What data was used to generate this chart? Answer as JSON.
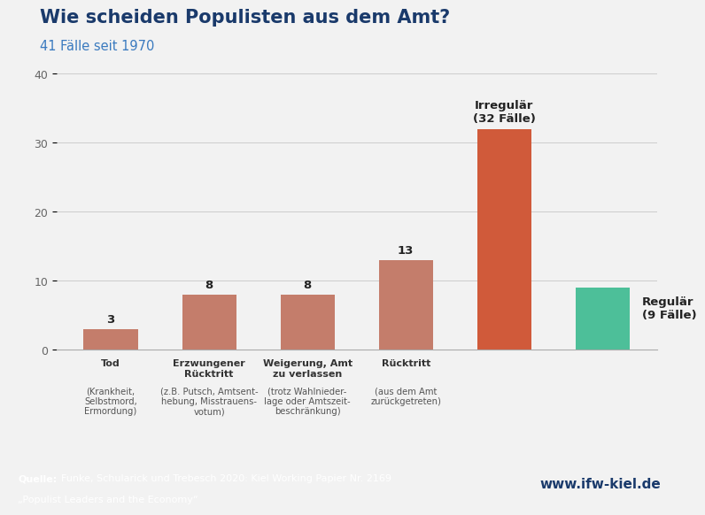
{
  "title": "Wie scheiden Populisten aus dem Amt?",
  "subtitle": "41 Fälle seit 1970",
  "title_color": "#1a3a6b",
  "subtitle_color": "#3a7abf",
  "x_labels": [
    "Tod",
    "Erzwungener\nRücktritt",
    "Weigerung, Amt\nzu verlassen",
    "Rücktritt",
    "",
    ""
  ],
  "x_sublabels": [
    "(Krankheit,\nSelbstmord,\nErmordung)",
    "(z.B. Putsch, Amtsent-\nhebung, Misstrauens-\nvotum)",
    "(trotz Wahlnieder-\nlage oder Amtszeit-\nbeschränkung)",
    "(aus dem Amt\nzurückgetreten)",
    "",
    ""
  ],
  "values": [
    3,
    8,
    8,
    13,
    32,
    9
  ],
  "bar_colors": [
    "#c47d6b",
    "#c47d6b",
    "#c47d6b",
    "#c47d6b",
    "#d05a3a",
    "#4dbf99"
  ],
  "value_labels": [
    "3",
    "8",
    "8",
    "13",
    "",
    ""
  ],
  "ylim": [
    0,
    40
  ],
  "yticks": [
    0,
    10,
    20,
    30,
    40
  ],
  "background_color": "#f2f2f2",
  "plot_bg_color": "#f2f2f2",
  "grid_color": "#cccccc",
  "footer_bg_color": "#1a3a6b",
  "footer_right_bg": "#cccccc",
  "footer_right_text": "www.ifw-kiel.de",
  "irregulär_label": "Irregulär\n(32 Fälle)",
  "regulär_label": "Regulär\n(9 Fälle)",
  "bar_width": 0.55
}
